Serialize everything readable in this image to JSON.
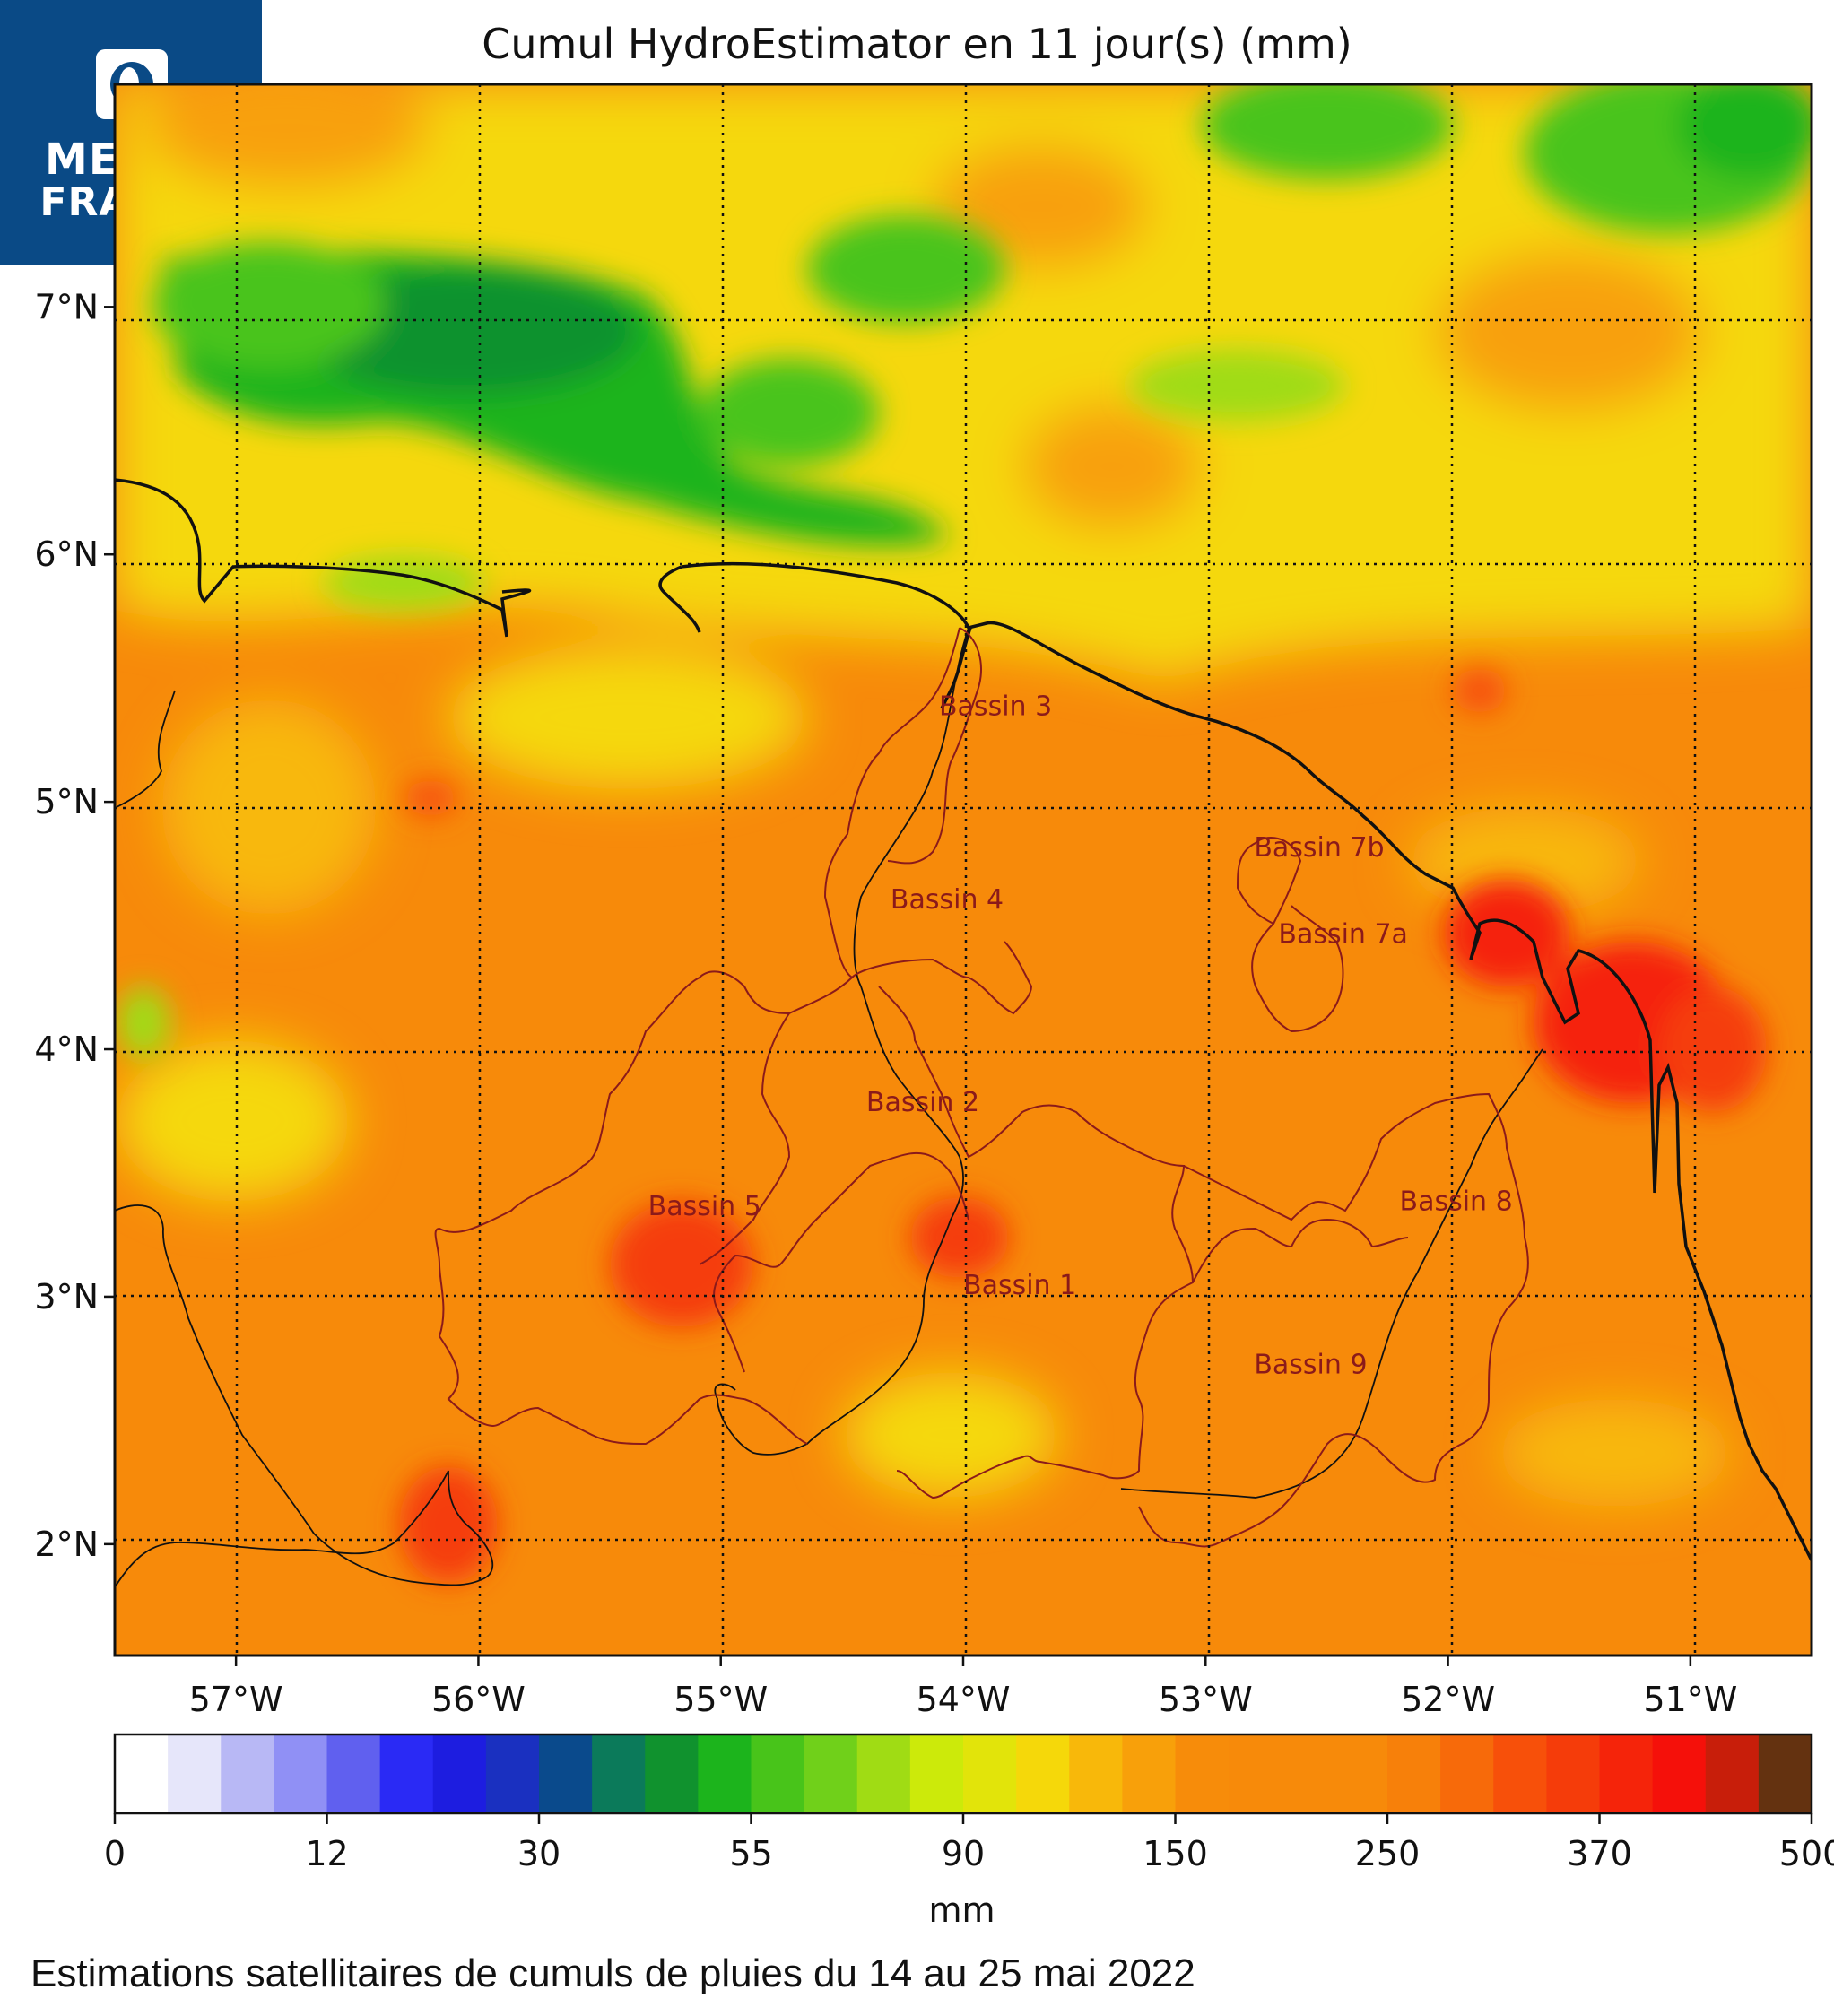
{
  "title": "Cumul HydroEstimator en 11 jour(s) (mm)",
  "logo": {
    "line1": "METEO",
    "line2": "FRANCE"
  },
  "axes": {
    "lon_ticks": [
      "57°W",
      "56°W",
      "55°W",
      "54°W",
      "53°W",
      "52°W",
      "51°W"
    ],
    "lat_ticks": [
      "7°N",
      "6°N",
      "5°N",
      "4°N",
      "3°N",
      "2°N"
    ],
    "lon_values": [
      -57,
      -56,
      -55,
      -54,
      -53,
      -52,
      -51
    ],
    "lat_values": [
      7,
      6,
      5,
      4,
      3,
      2
    ],
    "lon_range": [
      -57.5,
      -50.5
    ],
    "lat_range": [
      1.55,
      7.9
    ]
  },
  "basins": [
    {
      "label": "Bassin 3",
      "lon": -54.1,
      "lat": 5.35
    },
    {
      "label": "Bassin 4",
      "lon": -54.3,
      "lat": 4.57
    },
    {
      "label": "Bassin 7b",
      "lon": -52.8,
      "lat": 4.78
    },
    {
      "label": "Bassin 7a",
      "lon": -52.7,
      "lat": 4.43
    },
    {
      "label": "Bassin 2",
      "lon": -54.4,
      "lat": 3.75
    },
    {
      "label": "Bassin 5",
      "lon": -55.3,
      "lat": 3.33
    },
    {
      "label": "Bassin 8",
      "lon": -52.2,
      "lat": 3.35
    },
    {
      "label": "Bassin 1",
      "lon": -54.0,
      "lat": 3.01
    },
    {
      "label": "Bassin 9",
      "lon": -52.8,
      "lat": 2.69
    }
  ],
  "colorbar": {
    "labels": [
      "0",
      "12",
      "30",
      "55",
      "90",
      "150",
      "250",
      "370",
      "500"
    ],
    "unit": "mm",
    "colors": [
      "#ffffff",
      "#e6e6fa",
      "#b8b8f5",
      "#9090f5",
      "#6060ef",
      "#2a2af5",
      "#1d1de0",
      "#1a30c0",
      "#0a4a8c",
      "#0b7a5a",
      "#10922e",
      "#1cb41c",
      "#48c41a",
      "#70d01a",
      "#a0dc14",
      "#ccea0a",
      "#e2e40a",
      "#f5d80a",
      "#f8b80a",
      "#f8a00a",
      "#f78c0a",
      "#f78a0a",
      "#f78a0a",
      "#f78a0a",
      "#f7800a",
      "#f76a0a",
      "#f7500a",
      "#f53c0a",
      "#f5240a",
      "#f5100a",
      "#c81e0a",
      "#643210"
    ]
  },
  "caption": "Estimations satellitaires de cumuls de pluies du 14 au 25 mai 2022"
}
